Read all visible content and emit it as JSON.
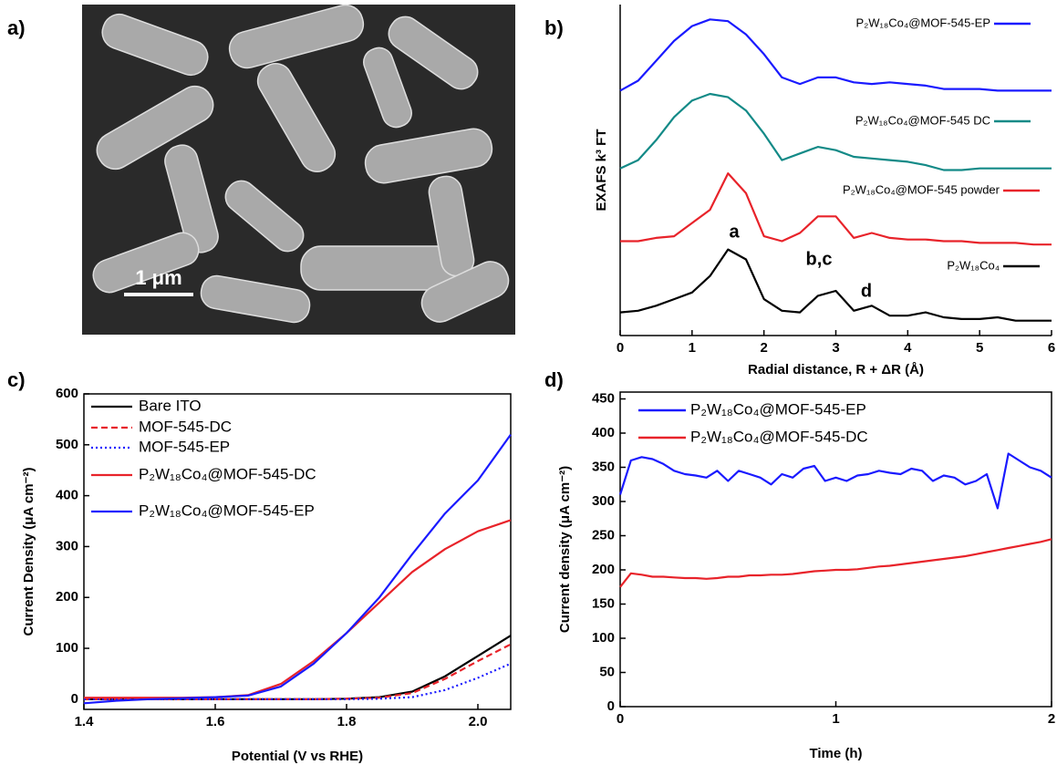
{
  "panel_labels": [
    "a)",
    "b)",
    "c)",
    "d)"
  ],
  "image": {
    "scale_bar": "1 μm"
  },
  "chart_data": [
    {
      "type": "line",
      "xlabel": "Radial distance, R + ΔR (Å)",
      "ylabel": "EXAFS k³ FT",
      "xlim": [
        0,
        6
      ],
      "ylim": [
        0,
        10
      ],
      "xticks": [
        0,
        1,
        2,
        3,
        4,
        5,
        6
      ],
      "annotations": [
        "a",
        "b,c",
        "d"
      ],
      "x": [
        0,
        0.25,
        0.5,
        0.75,
        1,
        1.25,
        1.5,
        1.75,
        2,
        2.25,
        2.5,
        2.75,
        3,
        3.25,
        3.5,
        3.75,
        4,
        4.25,
        4.5,
        4.75,
        5,
        5.25,
        5.5,
        5.75,
        6
      ],
      "series": [
        {
          "name": "P₂W₁₈Co₄@MOF-545-EP",
          "color": "#1a1aff",
          "values": [
            7.4,
            7.7,
            8.3,
            8.9,
            9.35,
            9.55,
            9.5,
            9.1,
            8.5,
            7.8,
            7.6,
            7.8,
            7.8,
            7.65,
            7.6,
            7.65,
            7.6,
            7.55,
            7.45,
            7.45,
            7.45,
            7.4,
            7.4,
            7.4,
            7.4
          ]
        },
        {
          "name": "P₂W₁₈Co₄@MOF-545 DC",
          "color": "#138a87",
          "values": [
            5.05,
            5.3,
            5.9,
            6.6,
            7.1,
            7.3,
            7.2,
            6.8,
            6.1,
            5.3,
            5.5,
            5.7,
            5.6,
            5.4,
            5.35,
            5.3,
            5.25,
            5.15,
            5.0,
            5.0,
            5.05,
            5.05,
            5.05,
            5.05,
            5.05
          ]
        },
        {
          "name": "P₂W₁₈Co₄@MOF-545 powder",
          "color": "#e8232a",
          "values": [
            2.85,
            2.85,
            2.95,
            3.0,
            3.4,
            3.8,
            4.9,
            4.3,
            3.0,
            2.85,
            3.1,
            3.6,
            3.6,
            2.95,
            3.1,
            2.95,
            2.9,
            2.9,
            2.85,
            2.85,
            2.8,
            2.8,
            2.8,
            2.75,
            2.75
          ]
        },
        {
          "name": "P₂W₁₈Co₄",
          "color": "#000000",
          "values": [
            0.7,
            0.75,
            0.9,
            1.1,
            1.3,
            1.8,
            2.6,
            2.3,
            1.1,
            0.75,
            0.7,
            1.2,
            1.35,
            0.75,
            0.9,
            0.6,
            0.6,
            0.7,
            0.55,
            0.5,
            0.5,
            0.55,
            0.45,
            0.45,
            0.45
          ]
        }
      ]
    },
    {
      "type": "line",
      "xlabel": "Potential (V vs RHE)",
      "ylabel": "Current Density (μA cm⁻²)",
      "xlim": [
        1.4,
        2.05
      ],
      "ylim": [
        -20,
        600
      ],
      "xticks": [
        1.4,
        1.6,
        1.8,
        {
          "value": 2,
          "label": "2.0"
        }
      ],
      "yticks": [
        0,
        100,
        200,
        300,
        400,
        500,
        600
      ],
      "x": [
        1.4,
        1.45,
        1.5,
        1.55,
        1.6,
        1.65,
        1.7,
        1.75,
        1.8,
        1.85,
        1.9,
        1.95,
        2.0,
        2.05
      ],
      "series": [
        {
          "name": "Bare ITO",
          "color": "#000000",
          "dash": "solid",
          "values": [
            0,
            0,
            0,
            0,
            0,
            0,
            0,
            0,
            1,
            4,
            15,
            45,
            85,
            125
          ]
        },
        {
          "name": "MOF-545-DC",
          "color": "#e8232a",
          "dash": "dashed",
          "values": [
            0,
            0,
            0,
            0,
            0,
            0,
            0,
            0,
            1,
            3,
            12,
            40,
            75,
            108
          ]
        },
        {
          "name": "MOF-545-EP",
          "color": "#1a1aff",
          "dash": "dotted",
          "values": [
            0,
            0,
            0,
            0,
            0,
            0,
            0,
            0,
            0,
            1,
            4,
            18,
            42,
            70
          ]
        },
        {
          "name": "P₂W₁₈Co₄@MOF-545-DC",
          "color": "#e8232a",
          "dash": "solid",
          "values": [
            3,
            3,
            3,
            3,
            4,
            8,
            30,
            75,
            130,
            190,
            250,
            295,
            330,
            352
          ]
        },
        {
          "name": "P₂W₁₈Co₄@MOF-545-EP",
          "color": "#1a1aff",
          "dash": "solid",
          "values": [
            -8,
            -3,
            0,
            2,
            4,
            7,
            25,
            70,
            130,
            200,
            285,
            365,
            430,
            520
          ]
        }
      ]
    },
    {
      "type": "line",
      "xlabel": "Time (h)",
      "ylabel": "Current density (μA cm⁻²)",
      "xlim": [
        0,
        2
      ],
      "ylim": [
        0,
        460
      ],
      "xticks": [
        0,
        1,
        2
      ],
      "yticks": [
        0,
        50,
        100,
        150,
        200,
        250,
        300,
        350,
        400,
        450
      ],
      "x": [
        0,
        0.05,
        0.1,
        0.15,
        0.2,
        0.25,
        0.3,
        0.35,
        0.4,
        0.45,
        0.5,
        0.55,
        0.6,
        0.65,
        0.7,
        0.75,
        0.8,
        0.85,
        0.9,
        0.95,
        1,
        1.05,
        1.1,
        1.15,
        1.2,
        1.25,
        1.3,
        1.35,
        1.4,
        1.45,
        1.5,
        1.55,
        1.6,
        1.65,
        1.7,
        1.75,
        1.8,
        1.85,
        1.9,
        1.95,
        2
      ],
      "series": [
        {
          "name": "P₂W₁₈Co₄@MOF-545-EP",
          "color": "#1a1aff",
          "dash": "solid",
          "values": [
            310,
            360,
            365,
            362,
            355,
            345,
            340,
            338,
            335,
            345,
            330,
            345,
            340,
            335,
            325,
            340,
            335,
            348,
            352,
            330,
            335,
            330,
            338,
            340,
            345,
            342,
            340,
            348,
            345,
            330,
            338,
            335,
            325,
            330,
            340,
            290,
            370,
            360,
            350,
            345,
            335
          ]
        },
        {
          "name": "P₂W₁₈Co₄@MOF-545-DC",
          "color": "#e8232a",
          "dash": "solid",
          "values": [
            175,
            195,
            193,
            190,
            190,
            189,
            188,
            188,
            187,
            188,
            190,
            190,
            192,
            192,
            193,
            193,
            194,
            196,
            198,
            199,
            200,
            200,
            201,
            203,
            205,
            206,
            208,
            210,
            212,
            214,
            216,
            218,
            220,
            223,
            226,
            229,
            232,
            235,
            238,
            241,
            245
          ]
        }
      ]
    }
  ]
}
